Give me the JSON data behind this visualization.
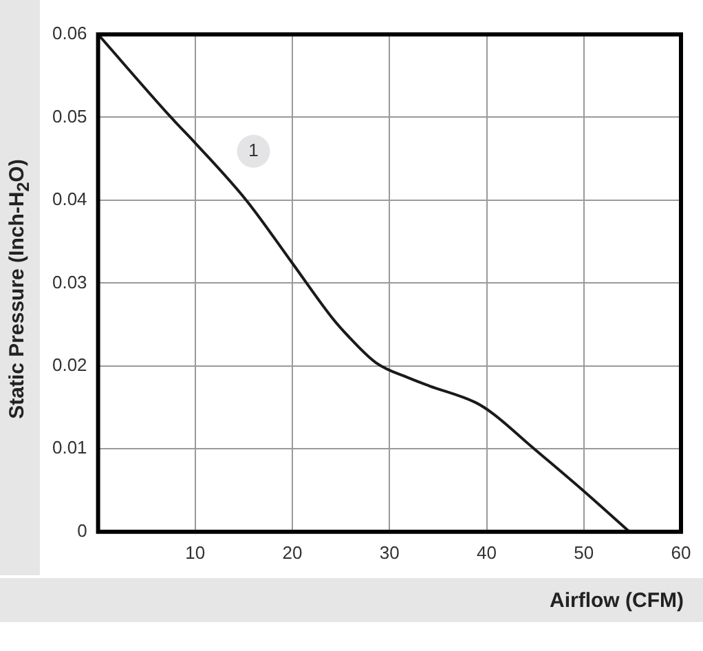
{
  "chart_data": {
    "type": "line",
    "xlabel": "Airflow (CFM)",
    "ylabel": "Static Pressure (Inch-H$_{2}$O)",
    "series": [
      {
        "color": "#1a1a1a",
        "x": [
          0,
          7.5,
          10,
          15.25,
          20,
          24.1,
          25.75,
          28.6,
          32.1,
          34.1,
          38.85,
          40.6,
          44.6,
          50,
          54.7
        ],
        "values": [
          0.06,
          0.05,
          0.0469,
          0.04,
          0.0324,
          0.0258,
          0.0236,
          0.0204,
          0.0185,
          0.0176,
          0.0156,
          0.0143,
          0.0103,
          0.0049,
          0
        ]
      }
    ],
    "xlim": [
      0,
      60
    ],
    "xticks": [
      10,
      20,
      30,
      40,
      50,
      60
    ],
    "ylim": [
      0,
      0.06
    ],
    "yticks": [
      0,
      0.01,
      0.02,
      0.03,
      0.04,
      0.05,
      0.06
    ],
    "grid": true,
    "marker": "none",
    "line_style": "solid",
    "annotations": [
      {
        "text": "1",
        "x": 16,
        "y": 0.0459
      }
    ]
  }
}
